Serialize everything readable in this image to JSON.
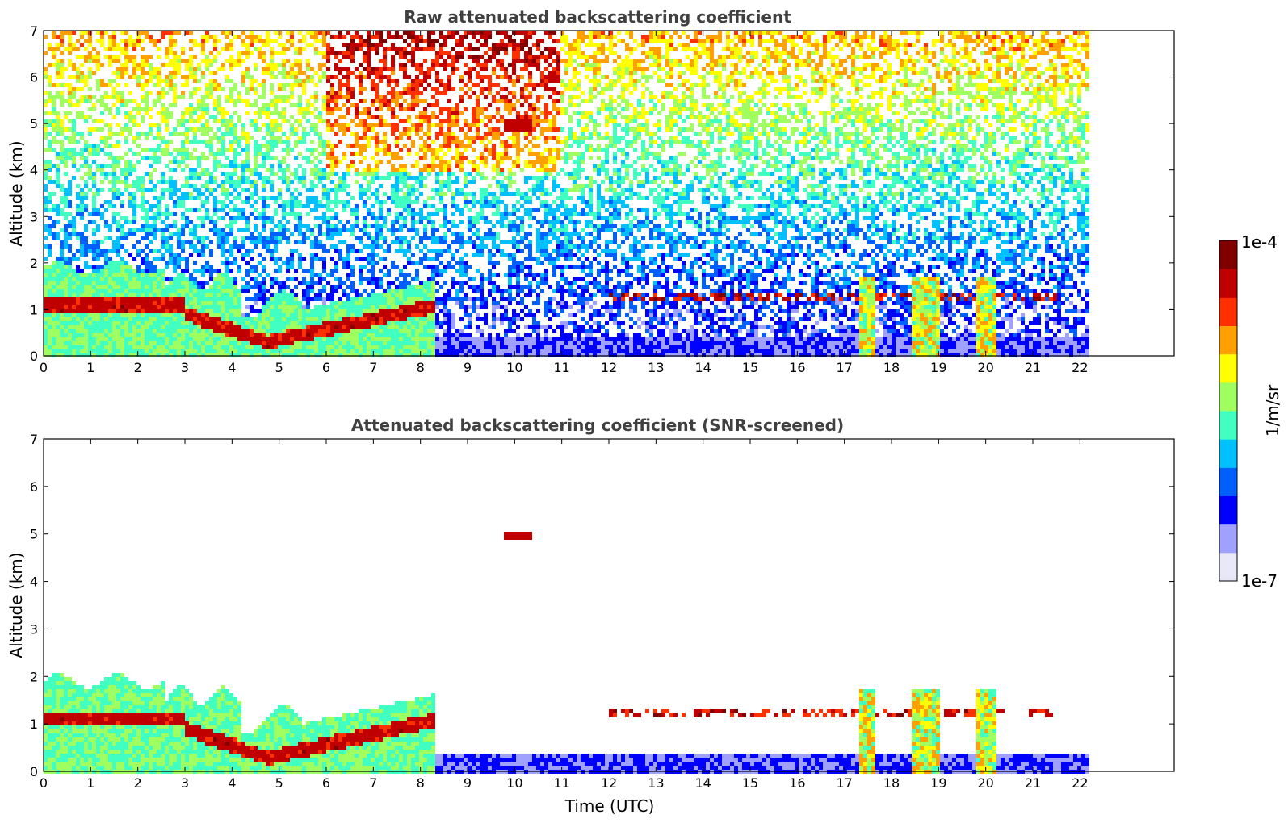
{
  "chart_data": [
    {
      "type": "heatmap",
      "title": "Raw attenuated backscattering coefficient",
      "xlabel": "",
      "ylabel": "Altitude (km)",
      "xlim": [
        0,
        24
      ],
      "ylim": [
        0,
        7
      ],
      "xticks": [
        "0",
        "1",
        "2",
        "3",
        "4",
        "5",
        "6",
        "7",
        "8",
        "9",
        "10",
        "11",
        "12",
        "13",
        "14",
        "15",
        "16",
        "17",
        "18",
        "19",
        "20",
        "21",
        "22"
      ],
      "yticks": [
        "0",
        "1",
        "2",
        "3",
        "4",
        "5",
        "6",
        "7"
      ],
      "data_end_hour": 22.2
    },
    {
      "type": "heatmap",
      "title": "Attenuated backscattering coefficient (SNR-screened)",
      "xlabel": "Time (UTC)",
      "ylabel": "Altitude (km)",
      "xlim": [
        0,
        24
      ],
      "ylim": [
        0,
        7
      ],
      "xticks": [
        "0",
        "1",
        "2",
        "3",
        "4",
        "5",
        "6",
        "7",
        "8",
        "9",
        "10",
        "11",
        "12",
        "13",
        "14",
        "15",
        "16",
        "17",
        "18",
        "19",
        "20",
        "21",
        "22"
      ],
      "yticks": [
        "0",
        "1",
        "2",
        "3",
        "4",
        "5",
        "6",
        "7"
      ],
      "data_end_hour": 22.2
    }
  ],
  "colorbar": {
    "label": "1/m/sr",
    "max_label": "1e-4",
    "min_label": "1e-7",
    "colors": [
      "#e8e8f8",
      "#a0a0ff",
      "#0000ff",
      "#0060ff",
      "#00c0ff",
      "#40ffc0",
      "#a0ff60",
      "#ffff00",
      "#ffa000",
      "#ff3000",
      "#c00000",
      "#800000"
    ]
  }
}
